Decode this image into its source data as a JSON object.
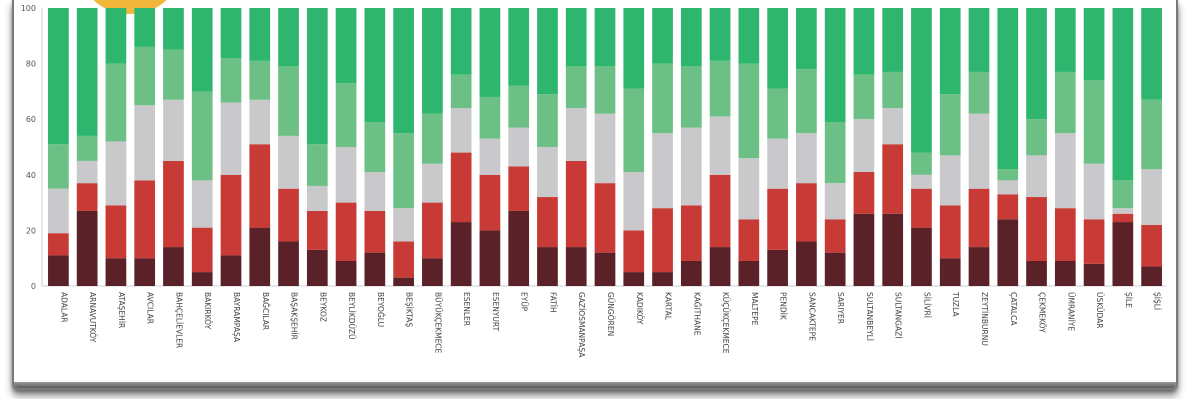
{
  "chart_data": {
    "type": "bar",
    "stacked": true,
    "ylim": [
      0,
      100
    ],
    "yticks": [
      0,
      20,
      40,
      60,
      80,
      100
    ],
    "categories": [
      "ADALAR",
      "ARNAVUTKÖY",
      "ATAŞEHİR",
      "AVCILAR",
      "BAHÇELİEVLER",
      "BAKIRKÖY",
      "BAYRAMPAŞA",
      "BAĞCILAR",
      "BAŞAKŞEHİR",
      "BEYKOZ",
      "BEYLİKDÜZÜ",
      "BEYOĞLU",
      "BEŞİKTAŞ",
      "BÜYÜKÇEKMECE",
      "ESENLER",
      "ESENYURT",
      "EYÜP",
      "FATİH",
      "GAZİOSMANPAŞA",
      "GÜNGÖREN",
      "KADIKÖY",
      "KARTAL",
      "KAĞITHANE",
      "KÜÇÜKÇEKMECE",
      "MALTEPE",
      "PENDİK",
      "SANCAKTEPE",
      "SARIYER",
      "SULTANBEYLİ",
      "SULTANGAZİ",
      "SİLİVRİ",
      "TUZLA",
      "ZEYTİNBURNU",
      "ÇATALCA",
      "ÇEKMEKÖY",
      "ÜMRANİYE",
      "ÜSKÜDAR",
      "ŞİLE",
      "ŞİŞLİ"
    ],
    "series_colors": [
      "#5a2228",
      "#c83a35",
      "#c9c9cb",
      "#6cc085",
      "#2eb56e"
    ],
    "stacks": [
      [
        11,
        19,
        35,
        51,
        100
      ],
      [
        27,
        37,
        45,
        54,
        100
      ],
      [
        10,
        29,
        52,
        80,
        100
      ],
      [
        10,
        38,
        65,
        86,
        100
      ],
      [
        14,
        45,
        67,
        85,
        100
      ],
      [
        5,
        21,
        38,
        70,
        100
      ],
      [
        11,
        40,
        66,
        82,
        100
      ],
      [
        21,
        51,
        67,
        81,
        100
      ],
      [
        16,
        35,
        54,
        79,
        100
      ],
      [
        13,
        27,
        36,
        51,
        100
      ],
      [
        9,
        30,
        50,
        73,
        100
      ],
      [
        12,
        27,
        41,
        59,
        100
      ],
      [
        3,
        16,
        28,
        55,
        100
      ],
      [
        10,
        30,
        44,
        62,
        100
      ],
      [
        23,
        48,
        64,
        76,
        100
      ],
      [
        20,
        40,
        53,
        68,
        100
      ],
      [
        27,
        43,
        57,
        72,
        100
      ],
      [
        14,
        32,
        50,
        69,
        100
      ],
      [
        14,
        45,
        64,
        79,
        100
      ],
      [
        12,
        37,
        62,
        79,
        100
      ],
      [
        5,
        20,
        41,
        71,
        100
      ],
      [
        5,
        28,
        55,
        80,
        100
      ],
      [
        9,
        29,
        57,
        79,
        100
      ],
      [
        14,
        40,
        61,
        81,
        100
      ],
      [
        9,
        24,
        46,
        80,
        100
      ],
      [
        13,
        35,
        53,
        71,
        100
      ],
      [
        16,
        37,
        55,
        78,
        100
      ],
      [
        12,
        24,
        37,
        59,
        100
      ],
      [
        26,
        41,
        60,
        76,
        100
      ],
      [
        26,
        51,
        64,
        77,
        100
      ],
      [
        21,
        35,
        40,
        48,
        100
      ],
      [
        10,
        29,
        47,
        69,
        100
      ],
      [
        14,
        35,
        62,
        77,
        100
      ],
      [
        24,
        33,
        38,
        42,
        100
      ],
      [
        9,
        32,
        47,
        60,
        100
      ],
      [
        9,
        28,
        55,
        77,
        100
      ],
      [
        8,
        24,
        44,
        74,
        100
      ],
      [
        23,
        26,
        28,
        38,
        100
      ],
      [
        7,
        22,
        42,
        67,
        100
      ]
    ]
  }
}
